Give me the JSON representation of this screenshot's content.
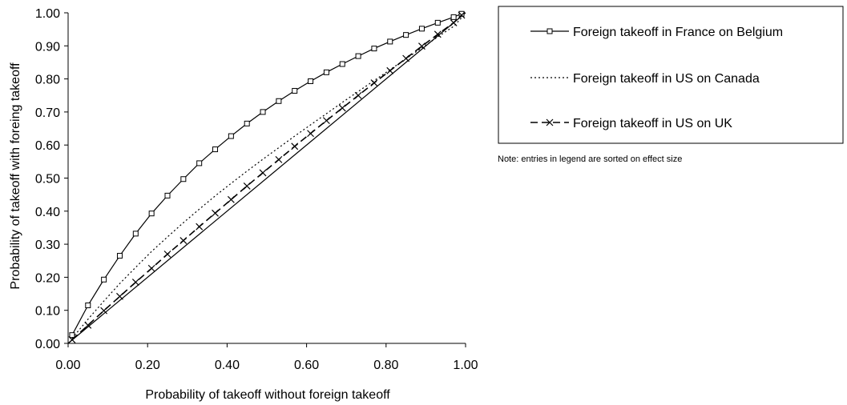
{
  "chart_data": {
    "type": "line",
    "xlabel": "Probability of takeoff without foreign takeoff",
    "ylabel": "Probability of takeoff with foreing takeoff",
    "xlim": [
      0,
      1
    ],
    "ylim": [
      0,
      1
    ],
    "x_ticks": [
      "0.00",
      "0.20",
      "0.40",
      "0.60",
      "0.80",
      "1.00"
    ],
    "y_ticks": [
      "0.00",
      "0.10",
      "0.20",
      "0.30",
      "0.40",
      "0.50",
      "0.60",
      "0.70",
      "0.80",
      "0.90",
      "1.00"
    ],
    "legend_position": "right",
    "grid": false,
    "note": "Note: entries in legend are sorted on effect size",
    "series": [
      {
        "name": "Foreign takeoff in France on Belgium",
        "style": "solid-square-markers",
        "color": "#000000",
        "x": [
          0.01,
          0.05,
          0.09,
          0.13,
          0.17,
          0.21,
          0.25,
          0.29,
          0.33,
          0.37,
          0.41,
          0.45,
          0.49,
          0.53,
          0.57,
          0.61,
          0.65,
          0.69,
          0.73,
          0.77,
          0.81,
          0.85,
          0.89,
          0.93,
          0.97,
          0.99
        ],
        "y": [
          0.025,
          0.115,
          0.193,
          0.265,
          0.332,
          0.393,
          0.447,
          0.497,
          0.545,
          0.587,
          0.627,
          0.665,
          0.7,
          0.733,
          0.764,
          0.793,
          0.82,
          0.845,
          0.869,
          0.892,
          0.913,
          0.933,
          0.952,
          0.97,
          0.987,
          0.997
        ]
      },
      {
        "name": "Foreign takeoff in US on Canada",
        "style": "dotted",
        "color": "#000000",
        "x": [
          0.01,
          0.05,
          0.09,
          0.13,
          0.17,
          0.21,
          0.25,
          0.29,
          0.33,
          0.37,
          0.41,
          0.45,
          0.49,
          0.53,
          0.57,
          0.61,
          0.65,
          0.69,
          0.73,
          0.77,
          0.81,
          0.85,
          0.89,
          0.93,
          0.97,
          0.99
        ],
        "y": [
          0.015,
          0.073,
          0.128,
          0.181,
          0.23,
          0.278,
          0.322,
          0.365,
          0.406,
          0.446,
          0.484,
          0.521,
          0.557,
          0.592,
          0.627,
          0.661,
          0.695,
          0.729,
          0.762,
          0.795,
          0.828,
          0.861,
          0.894,
          0.927,
          0.959,
          0.985
        ]
      },
      {
        "name": "Foreign takeoff in US on UK",
        "style": "dashed-x-markers",
        "color": "#000000",
        "x": [
          0.01,
          0.05,
          0.09,
          0.13,
          0.17,
          0.21,
          0.25,
          0.29,
          0.33,
          0.37,
          0.41,
          0.45,
          0.49,
          0.53,
          0.57,
          0.61,
          0.65,
          0.69,
          0.73,
          0.77,
          0.81,
          0.85,
          0.89,
          0.93,
          0.97,
          0.99
        ],
        "y": [
          0.011,
          0.055,
          0.099,
          0.142,
          0.185,
          0.227,
          0.27,
          0.311,
          0.353,
          0.394,
          0.435,
          0.476,
          0.516,
          0.556,
          0.596,
          0.635,
          0.674,
          0.712,
          0.75,
          0.788,
          0.825,
          0.862,
          0.899,
          0.935,
          0.97,
          0.993
        ]
      }
    ],
    "reference_line": {
      "x": [
        0,
        1
      ],
      "y": [
        0,
        1
      ],
      "style": "solid",
      "color": "#000000"
    }
  }
}
